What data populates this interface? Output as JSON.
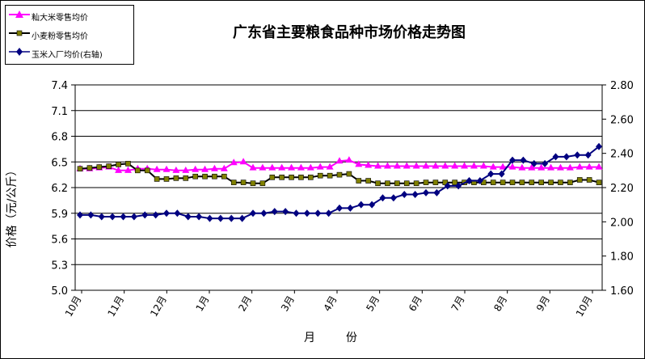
{
  "chart_data": {
    "type": "line",
    "title": "广东省主要粮食品种市场价格走势图",
    "xlabel": "月　份",
    "ylabel": "价格（元/公斤）",
    "ylim": [
      5.0,
      7.4
    ],
    "y2lim": [
      1.6,
      2.8
    ],
    "yticks": [
      "5.0",
      "5.3",
      "5.6",
      "5.9",
      "6.2",
      "6.5",
      "6.8",
      "7.1",
      "7.4"
    ],
    "y2ticks": [
      "1.60",
      "1.80",
      "2.00",
      "2.20",
      "2.40",
      "2.60",
      "2.80"
    ],
    "grid": "horizontal",
    "legend_position": "top-left",
    "months": [
      "10月",
      "11月",
      "12月",
      "1月",
      "2月",
      "3月",
      "4月",
      "5月",
      "6月",
      "7月",
      "8月",
      "9月",
      "10月"
    ],
    "series": [
      {
        "name": "籼大米零售均价",
        "axis": "left",
        "color": "#FF00FF",
        "marker": "triangle",
        "values": [
          6.42,
          6.42,
          6.43,
          6.44,
          6.4,
          6.4,
          6.42,
          6.42,
          6.41,
          6.41,
          6.4,
          6.4,
          6.41,
          6.41,
          6.42,
          6.42,
          6.49,
          6.5,
          6.43,
          6.43,
          6.43,
          6.43,
          6.43,
          6.43,
          6.43,
          6.44,
          6.44,
          6.51,
          6.52,
          6.47,
          6.46,
          6.45,
          6.45,
          6.45,
          6.45,
          6.45,
          6.45,
          6.45,
          6.45,
          6.45,
          6.45,
          6.45,
          6.45,
          6.44,
          6.44,
          6.44,
          6.43,
          6.43,
          6.43,
          6.43,
          6.43,
          6.43,
          6.44,
          6.44,
          6.44
        ]
      },
      {
        "name": "小麦粉零售均价",
        "axis": "left",
        "color": "#000000",
        "marker": "square",
        "markerFill": "#808000",
        "values": [
          6.42,
          6.43,
          6.44,
          6.45,
          6.47,
          6.48,
          6.4,
          6.4,
          6.3,
          6.3,
          6.31,
          6.31,
          6.33,
          6.33,
          6.33,
          6.33,
          6.26,
          6.26,
          6.25,
          6.25,
          6.32,
          6.32,
          6.32,
          6.32,
          6.32,
          6.34,
          6.34,
          6.35,
          6.36,
          6.28,
          6.28,
          6.25,
          6.25,
          6.25,
          6.25,
          6.25,
          6.26,
          6.26,
          6.26,
          6.26,
          6.26,
          6.26,
          6.26,
          6.26,
          6.26,
          6.26,
          6.26,
          6.26,
          6.26,
          6.26,
          6.26,
          6.26,
          6.29,
          6.29,
          6.26
        ]
      },
      {
        "name": "玉米入厂均价(右轴)",
        "axis": "right",
        "color": "#000080",
        "marker": "diamond",
        "values": [
          2.04,
          2.04,
          2.03,
          2.03,
          2.03,
          2.03,
          2.04,
          2.04,
          2.05,
          2.05,
          2.03,
          2.03,
          2.02,
          2.02,
          2.02,
          2.02,
          2.05,
          2.05,
          2.06,
          2.06,
          2.05,
          2.05,
          2.05,
          2.05,
          2.08,
          2.08,
          2.1,
          2.1,
          2.14,
          2.14,
          2.16,
          2.16,
          2.17,
          2.17,
          2.21,
          2.21,
          2.24,
          2.24,
          2.28,
          2.28,
          2.36,
          2.36,
          2.34,
          2.34,
          2.38,
          2.38,
          2.39,
          2.39,
          2.44
        ]
      }
    ]
  }
}
